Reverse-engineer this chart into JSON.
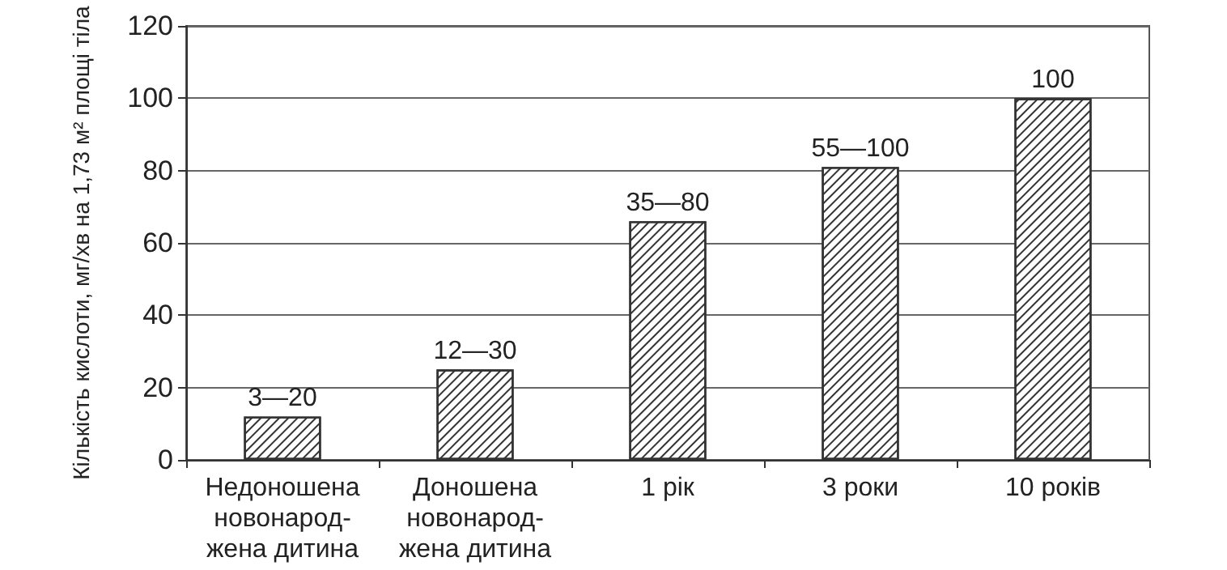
{
  "chart_data": {
    "type": "bar",
    "ylabel": "Кількість кислоти, мг/хв на 1,73 м² площі тіла",
    "categories": [
      "Недоношена\nновонарод-\nжена дитина",
      "Доношена\nновонарод-\nжена дитина",
      "1 рік",
      "3 роки",
      "10 років"
    ],
    "values": [
      12,
      25,
      66,
      81,
      100
    ],
    "annotations": [
      {
        "text": "3—20",
        "x": "Недоношена\nновонарод-\nжена дитина",
        "y": 12
      },
      {
        "text": "12—30",
        "x": "Доношена\nновонарод-\nжена дитина",
        "y": 25
      },
      {
        "text": "35—80",
        "x": "1 рік",
        "y": 66
      },
      {
        "text": "55—100",
        "x": "3 роки",
        "y": 81
      },
      {
        "text": "100",
        "x": "10 років",
        "y": 100
      }
    ],
    "color": "#333333",
    "ylim": [
      0,
      120
    ],
    "yticks": [
      0,
      20,
      40,
      60,
      80,
      100,
      120
    ],
    "grid": "y"
  }
}
